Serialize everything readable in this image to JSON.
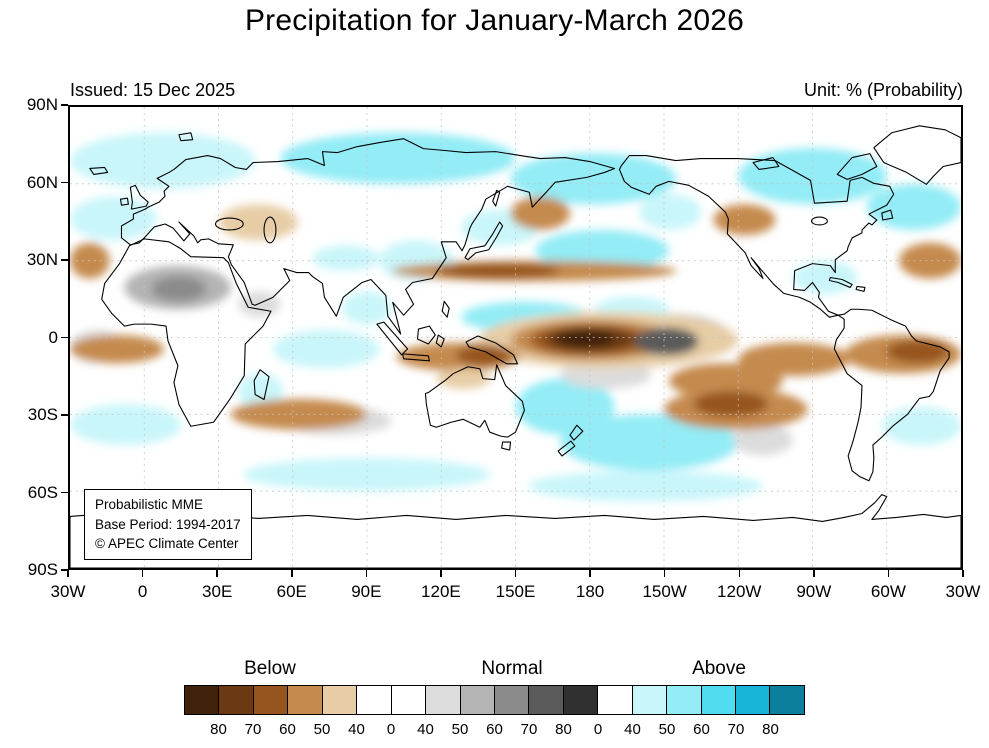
{
  "title": "Precipitation for January-March 2026",
  "header": {
    "issued": "Issued: 15 Dec 2025",
    "unit": "Unit: % (Probability)"
  },
  "map": {
    "lat_ticks": [
      "90N",
      "60N",
      "30N",
      "0",
      "30S",
      "60S",
      "90S"
    ],
    "lon_ticks": [
      "30W",
      "0",
      "30E",
      "60E",
      "90E",
      "120E",
      "150E",
      "180",
      "150W",
      "120W",
      "90W",
      "60W",
      "30W"
    ],
    "info_box": {
      "line1": "Probabilistic MME",
      "line2": "Base Period: 1994-2017",
      "line3": "© APEC Climate Center"
    },
    "grid_color": "#c4c4c4",
    "coast_color": "#000000"
  },
  "palettes": {
    "below": [
      "#e7cda6",
      "#c58a4e",
      "#96551e",
      "#6b3a12",
      "#3f2209"
    ],
    "normal": [
      "#dcdcdc",
      "#b4b4b4",
      "#8b8b8b",
      "#5a5a5a",
      "#303030"
    ],
    "above": [
      "#c9f6fa",
      "#93ecf6",
      "#4fdcee",
      "#18b5d8",
      "#0d7f9e"
    ]
  },
  "legend": {
    "groups": [
      {
        "label": "Below"
      },
      {
        "label": "Normal"
      },
      {
        "label": "Above"
      }
    ],
    "cells": [
      "#3f2209",
      "#6b3a12",
      "#96551e",
      "#c58a4e",
      "#e7cda6",
      "#ffffff",
      "#ffffff",
      "#dcdcdc",
      "#b4b4b4",
      "#8b8b8b",
      "#5a5a5a",
      "#303030",
      "#ffffff",
      "#c9f6fa",
      "#93ecf6",
      "#4fdcee",
      "#18b5d8",
      "#0d7f9e"
    ],
    "boundary_labels": [
      "80",
      "70",
      "60",
      "50",
      "40",
      "0",
      "40",
      "50",
      "60",
      "70",
      "80",
      "0",
      "40",
      "50",
      "60",
      "70",
      "80"
    ]
  },
  "chart_data": {
    "type": "heatmap",
    "title": "Precipitation for January-March 2026",
    "issued": "Issued: 15 Dec 2025",
    "unit": "% (Probability)",
    "x_ticks": [
      "30W",
      "0",
      "30E",
      "60E",
      "90E",
      "120E",
      "150E",
      "180",
      "150W",
      "120W",
      "90W",
      "60W",
      "30W"
    ],
    "y_ticks": [
      "90N",
      "60N",
      "30N",
      "0",
      "30S",
      "60S",
      "90S"
    ],
    "categories": [
      "Below",
      "Normal",
      "Above"
    ],
    "probability_levels": [
      40,
      50,
      60,
      70,
      80
    ],
    "levels_probability_range": [
      "40-50",
      "50-60",
      "60-70",
      "70-80",
      ">80"
    ],
    "regions": [
      {
        "name": "arctic-siberia",
        "category": "above",
        "level": 2,
        "lon": [
          55,
          150
        ],
        "lat": [
          60,
          80
        ]
      },
      {
        "name": "bering-alaska",
        "category": "above",
        "level": 2,
        "lon": [
          148,
          215
        ],
        "lat": [
          52,
          72
        ]
      },
      {
        "name": "arctic-atlantic-europe",
        "category": "above",
        "level": 1,
        "lon": [
          -30,
          45
        ],
        "lat": [
          58,
          80
        ]
      },
      {
        "name": "north-canada",
        "category": "above",
        "level": 2,
        "lon": [
          240,
          300
        ],
        "lat": [
          52,
          74
        ]
      },
      {
        "name": "northwest-atlantic",
        "category": "above",
        "level": 2,
        "lon": [
          292,
          330
        ],
        "lat": [
          42,
          60
        ]
      },
      {
        "name": "northeast-atlantic",
        "category": "above",
        "level": 1,
        "lon": [
          -30,
          5
        ],
        "lat": [
          38,
          55
        ]
      },
      {
        "name": "central-north-pacific",
        "category": "above",
        "level": 2,
        "lon": [
          158,
          212
        ],
        "lat": [
          26,
          42
        ]
      },
      {
        "name": "northwest-pacific",
        "category": "above",
        "level": 1,
        "lon": [
          128,
          160
        ],
        "lat": [
          36,
          50
        ]
      },
      {
        "name": "east-china",
        "category": "above",
        "level": 1,
        "lon": [
          95,
          125
        ],
        "lat": [
          22,
          38
        ]
      },
      {
        "name": "tibet-north-india",
        "category": "above",
        "level": 1,
        "lon": [
          68,
          95
        ],
        "lat": [
          26,
          36
        ]
      },
      {
        "name": "west-pacific-tropics",
        "category": "above",
        "level": 2,
        "lon": [
          128,
          180
        ],
        "lat": [
          2,
          14
        ]
      },
      {
        "name": "central-pacific-north-tropics",
        "category": "above",
        "level": 1,
        "lon": [
          182,
          212
        ],
        "lat": [
          6,
          16
        ]
      },
      {
        "name": "equatorial-indian-ocean",
        "category": "above",
        "level": 1,
        "lon": [
          52,
          95
        ],
        "lat": [
          -12,
          3
        ]
      },
      {
        "name": "bay-of-bengal",
        "category": "above",
        "level": 1,
        "lon": [
          80,
          100
        ],
        "lat": [
          5,
          18
        ]
      },
      {
        "name": "coral-sea-east-australia",
        "category": "above",
        "level": 2,
        "lon": [
          150,
          190
        ],
        "lat": [
          -38,
          -16
        ]
      },
      {
        "name": "south-pacific-midlatitude",
        "category": "above",
        "level": 2,
        "lon": [
          168,
          240
        ],
        "lat": [
          -52,
          -30
        ]
      },
      {
        "name": "mozambique-channel",
        "category": "above",
        "level": 1,
        "lon": [
          38,
          56
        ],
        "lat": [
          -28,
          -14
        ]
      },
      {
        "name": "south-atlantic-west",
        "category": "above",
        "level": 1,
        "lon": [
          298,
          330
        ],
        "lat": [
          -42,
          -27
        ]
      },
      {
        "name": "south-atlantic-east",
        "category": "above",
        "level": 1,
        "lon": [
          -30,
          15
        ],
        "lat": [
          -42,
          -26
        ]
      },
      {
        "name": "southern-ocean-indian",
        "category": "above",
        "level": 1,
        "lon": [
          40,
          140
        ],
        "lat": [
          -60,
          -47
        ]
      },
      {
        "name": "southern-ocean-pacific",
        "category": "above",
        "level": 1,
        "lon": [
          155,
          250
        ],
        "lat": [
          -64,
          -52
        ]
      },
      {
        "name": "gulf-of-mexico-caribbean",
        "category": "above",
        "level": 1,
        "lon": [
          262,
          288
        ],
        "lat": [
          17,
          30
        ]
      },
      {
        "name": "gulf-of-alaska",
        "category": "above",
        "level": 1,
        "lon": [
          200,
          225
        ],
        "lat": [
          42,
          56
        ]
      },
      {
        "name": "sahara-sahel",
        "category": "normal",
        "level": 2,
        "lon": [
          -8,
          35
        ],
        "lat": [
          11,
          28
        ]
      },
      {
        "name": "sahara-core",
        "category": "normal",
        "level": 3,
        "lon": [
          3,
          25
        ],
        "lat": [
          14,
          24
        ]
      },
      {
        "name": "arabia",
        "category": "normal",
        "level": 1,
        "lon": [
          38,
          55
        ],
        "lat": [
          8,
          18
        ]
      },
      {
        "name": "equatorial-atlantic",
        "category": "normal",
        "level": 1,
        "lon": [
          -30,
          -8
        ],
        "lat": [
          -10,
          3
        ]
      },
      {
        "name": "south-indian-ocean",
        "category": "normal",
        "level": 1,
        "lon": [
          55,
          100
        ],
        "lat": [
          -38,
          -27
        ]
      },
      {
        "name": "southeast-pacific-south",
        "category": "normal",
        "level": 1,
        "lon": [
          238,
          262
        ],
        "lat": [
          -46,
          -34
        ]
      },
      {
        "name": "south-central-pacific",
        "category": "normal",
        "level": 1,
        "lon": [
          168,
          205
        ],
        "lat": [
          -20,
          -9
        ]
      },
      {
        "name": "east-equatorial-pacific",
        "category": "normal",
        "level": 2,
        "lon": [
          186,
          238
        ],
        "lat": [
          -10,
          9
        ]
      },
      {
        "name": "equatorial-pacific-broad",
        "category": "below",
        "level": 1,
        "lon": [
          135,
          240
        ],
        "lat": [
          -12,
          10
        ]
      },
      {
        "name": "equatorial-pacific-outer",
        "category": "below",
        "level": 2,
        "lon": [
          148,
          215
        ],
        "lat": [
          -9,
          7
        ]
      },
      {
        "name": "east-pacific-coastal",
        "category": "below",
        "level": 2,
        "lon": [
          240,
          285
        ],
        "lat": [
          -15,
          -2
        ]
      },
      {
        "name": "north-pacific-subtropics",
        "category": "below",
        "level": 2,
        "lon": [
          100,
          215
        ],
        "lat": [
          22,
          30
        ]
      },
      {
        "name": "north-pacific-subtropics-core",
        "category": "below",
        "level": 3,
        "lon": [
          118,
          168
        ],
        "lat": [
          23,
          29
        ]
      },
      {
        "name": "pacific-southeast-tail",
        "category": "below",
        "level": 2,
        "lon": [
          212,
          258
        ],
        "lat": [
          -24,
          -10
        ]
      },
      {
        "name": "southeast-pacific-band",
        "category": "below",
        "level": 2,
        "lon": [
          210,
          268
        ],
        "lat": [
          -36,
          -20
        ]
      },
      {
        "name": "southeast-pacific-band-core",
        "category": "below",
        "level": 3,
        "lon": [
          222,
          252
        ],
        "lat": [
          -31,
          -21
        ]
      },
      {
        "name": "brazil-atlantic",
        "category": "below",
        "level": 2,
        "lon": [
          283,
          330
        ],
        "lat": [
          -14,
          1
        ]
      },
      {
        "name": "brazil-atlantic-core",
        "category": "below",
        "level": 3,
        "lon": [
          300,
          325
        ],
        "lat": [
          -10,
          -1
        ]
      },
      {
        "name": "gulf-of-guinea",
        "category": "below",
        "level": 2,
        "lon": [
          -30,
          8
        ],
        "lat": [
          -10,
          1
        ]
      },
      {
        "name": "maritime-continent",
        "category": "below",
        "level": 2,
        "lon": [
          102,
          152
        ],
        "lat": [
          -13,
          -2
        ]
      },
      {
        "name": "new-guinea",
        "category": "below",
        "level": 3,
        "lon": [
          126,
          148
        ],
        "lat": [
          -11,
          -3
        ]
      },
      {
        "name": "south-indian-band",
        "category": "below",
        "level": 2,
        "lon": [
          35,
          90
        ],
        "lat": [
          -36,
          -24
        ]
      },
      {
        "name": "north-atlantic-subtropics-west",
        "category": "below",
        "level": 2,
        "lon": [
          305,
          330
        ],
        "lat": [
          23,
          37
        ]
      },
      {
        "name": "north-atlantic-subtropics-east",
        "category": "below",
        "level": 2,
        "lon": [
          -30,
          -14
        ],
        "lat": [
          23,
          37
        ]
      },
      {
        "name": "okhotsk-kamchatka",
        "category": "below",
        "level": 2,
        "lon": [
          148,
          172
        ],
        "lat": [
          42,
          55
        ]
      },
      {
        "name": "west-north-america",
        "category": "below",
        "level": 2,
        "lon": [
          230,
          255
        ],
        "lat": [
          40,
          52
        ]
      },
      {
        "name": "central-asia",
        "category": "below",
        "level": 1,
        "lon": [
          30,
          62
        ],
        "lat": [
          38,
          52
        ]
      },
      {
        "name": "north-australia",
        "category": "below",
        "level": 1,
        "lon": [
          118,
          140
        ],
        "lat": [
          -20,
          -12
        ]
      },
      {
        "name": "equatorial-pacific-mid",
        "category": "below",
        "level": 3,
        "lon": [
          156,
          205
        ],
        "lat": [
          -7,
          5
        ]
      },
      {
        "name": "equatorial-pacific-core",
        "category": "below",
        "level": 4,
        "lon": [
          162,
          198
        ],
        "lat": [
          -5.5,
          4
        ]
      },
      {
        "name": "equatorial-pacific-darkest",
        "category": "below",
        "level": 5,
        "lon": [
          166,
          190
        ],
        "lat": [
          -4,
          3
        ]
      },
      {
        "name": "east-equatorial-pacific-core",
        "category": "normal",
        "level": 4,
        "lon": [
          198,
          224
        ],
        "lat": [
          -7,
          4
        ]
      }
    ]
  }
}
